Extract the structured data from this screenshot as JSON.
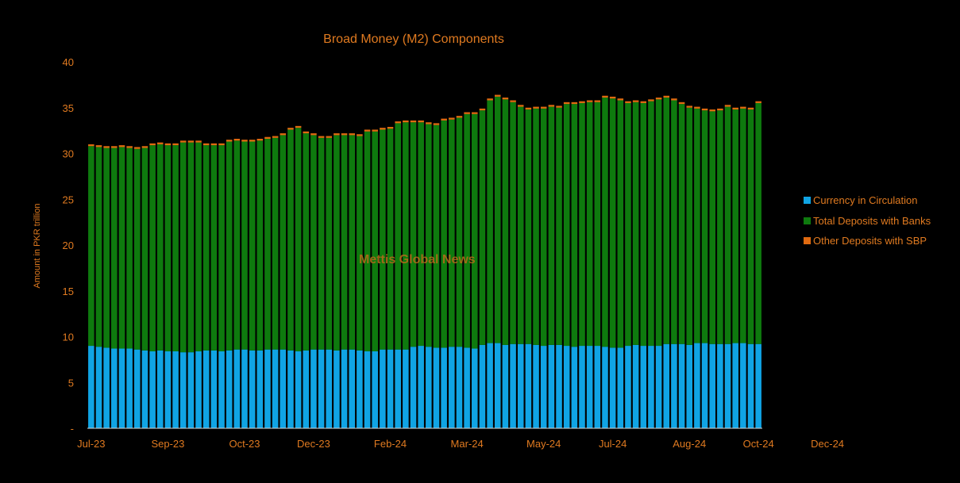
{
  "chart_data": {
    "type": "bar",
    "stacked": true,
    "title": "Broad Money (M2) Components",
    "ylabel": "Amount in PKR trillion",
    "xlabel": "",
    "ylim": [
      0,
      40
    ],
    "y_ticks": [
      0,
      5,
      10,
      15,
      20,
      25,
      30,
      35,
      40
    ],
    "y_tick_labels": [
      "-",
      "5",
      "10",
      "15",
      "20",
      "25",
      "30",
      "35",
      "40"
    ],
    "x_tick_labels": [
      "Jul-23",
      "Sep-23",
      "Oct-23",
      "Dec-23",
      "Feb-24",
      "Mar-24",
      "May-24",
      "Jul-24",
      "Aug-24",
      "Oct-24",
      "Dec-24"
    ],
    "x_tick_indices": [
      0,
      10,
      20,
      29,
      39,
      49,
      59,
      68,
      78,
      87,
      96
    ],
    "grid": false,
    "legend_position": "right",
    "watermark": "Mettis Global News",
    "series": [
      {
        "name": "Currency in Circulation",
        "color": "#10A4E4",
        "values": [
          9.0,
          8.9,
          8.8,
          8.7,
          8.7,
          8.7,
          8.6,
          8.5,
          8.4,
          8.5,
          8.4,
          8.4,
          8.3,
          8.3,
          8.4,
          8.5,
          8.5,
          8.4,
          8.5,
          8.6,
          8.6,
          8.5,
          8.5,
          8.6,
          8.6,
          8.6,
          8.5,
          8.4,
          8.5,
          8.6,
          8.6,
          8.6,
          8.5,
          8.6,
          8.6,
          8.5,
          8.4,
          8.4,
          8.6,
          8.6,
          8.6,
          8.6,
          8.9,
          9.0,
          8.9,
          8.8,
          8.8,
          8.9,
          8.9,
          8.8,
          8.7,
          9.1,
          9.3,
          9.3,
          9.1,
          9.2,
          9.2,
          9.2,
          9.1,
          9.0,
          9.1,
          9.1,
          9.0,
          8.9,
          9.0,
          9.0,
          9.0,
          8.9,
          8.8,
          8.8,
          9.0,
          9.1,
          9.0,
          9.0,
          9.0,
          9.2,
          9.2,
          9.2,
          9.1,
          9.3,
          9.3,
          9.2,
          9.2,
          9.2,
          9.3,
          9.3,
          9.2,
          9.2
        ]
      },
      {
        "name": "Total Deposits with Banks",
        "color": "#0E7A0E",
        "values": [
          21.8,
          21.8,
          21.8,
          21.9,
          22.0,
          21.9,
          21.9,
          22.1,
          22.5,
          22.5,
          22.5,
          22.5,
          22.9,
          22.9,
          22.8,
          22.4,
          22.4,
          22.5,
          22.8,
          22.8,
          22.7,
          22.8,
          22.9,
          23.0,
          23.1,
          23.4,
          24.1,
          24.4,
          23.7,
          23.4,
          23.1,
          23.1,
          23.5,
          23.4,
          23.4,
          23.4,
          24.0,
          24.0,
          24.0,
          24.1,
          24.7,
          24.8,
          24.5,
          24.4,
          24.3,
          24.3,
          24.8,
          24.8,
          25.0,
          25.5,
          25.6,
          25.6,
          26.5,
          26.9,
          26.8,
          26.4,
          25.9,
          25.6,
          25.8,
          25.9,
          26.0,
          25.9,
          26.4,
          26.5,
          26.5,
          26.6,
          26.6,
          27.2,
          27.2,
          27.0,
          26.5,
          26.5,
          26.5,
          26.7,
          26.9,
          26.9,
          26.6,
          26.2,
          25.9,
          25.6,
          25.4,
          25.4,
          25.5,
          25.9,
          25.5,
          25.6,
          25.6,
          26.3
        ]
      },
      {
        "name": "Other Deposits with SBP",
        "color": "#E06A10",
        "values": [
          0.2,
          0.2,
          0.2,
          0.2,
          0.2,
          0.2,
          0.2,
          0.2,
          0.2,
          0.2,
          0.2,
          0.2,
          0.2,
          0.2,
          0.2,
          0.2,
          0.2,
          0.2,
          0.2,
          0.2,
          0.2,
          0.2,
          0.2,
          0.2,
          0.2,
          0.2,
          0.2,
          0.2,
          0.2,
          0.2,
          0.2,
          0.2,
          0.2,
          0.2,
          0.2,
          0.2,
          0.2,
          0.2,
          0.2,
          0.2,
          0.2,
          0.2,
          0.2,
          0.2,
          0.2,
          0.2,
          0.2,
          0.2,
          0.2,
          0.2,
          0.2,
          0.2,
          0.2,
          0.2,
          0.2,
          0.2,
          0.2,
          0.2,
          0.2,
          0.2,
          0.2,
          0.2,
          0.2,
          0.2,
          0.2,
          0.2,
          0.2,
          0.2,
          0.2,
          0.2,
          0.2,
          0.2,
          0.2,
          0.2,
          0.2,
          0.2,
          0.2,
          0.2,
          0.2,
          0.2,
          0.2,
          0.2,
          0.2,
          0.2,
          0.2,
          0.2,
          0.2,
          0.2
        ]
      }
    ]
  },
  "colors": {
    "background": "#000000",
    "text": "#E07A20",
    "axis": "#D9D9D9"
  }
}
